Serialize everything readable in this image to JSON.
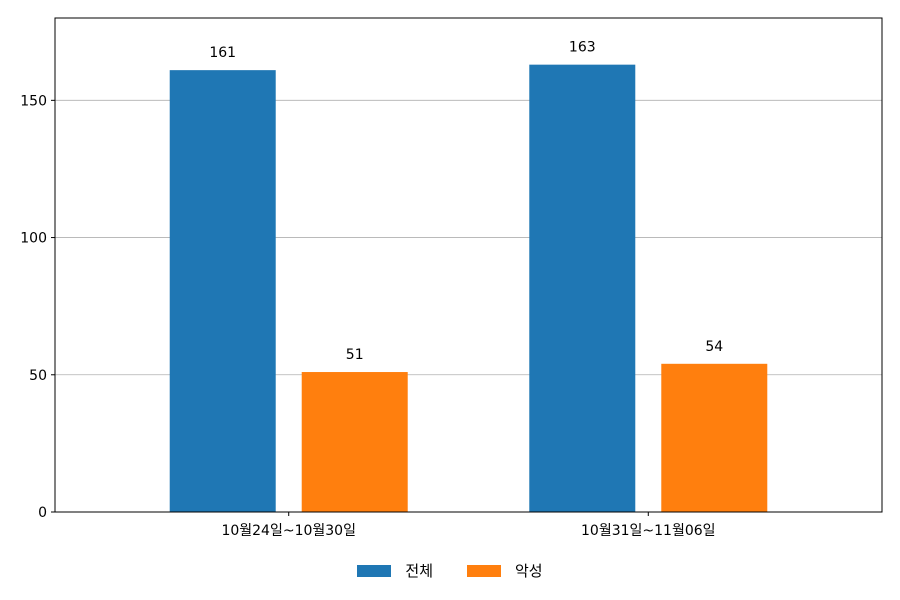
{
  "chart_data": {
    "type": "bar",
    "categories": [
      "10월24일~10월30일",
      "10월31일~11월06일"
    ],
    "series": [
      {
        "name": "전체",
        "values": [
          161,
          163
        ],
        "color": "#1f77b4"
      },
      {
        "name": "악성",
        "values": [
          51,
          54
        ],
        "color": "#ff7f0e"
      }
    ],
    "ylim": [
      0,
      180
    ],
    "yticks": [
      0,
      50,
      100,
      150
    ],
    "grid": "y",
    "legend": "bottom-center",
    "show_value_labels": true
  }
}
